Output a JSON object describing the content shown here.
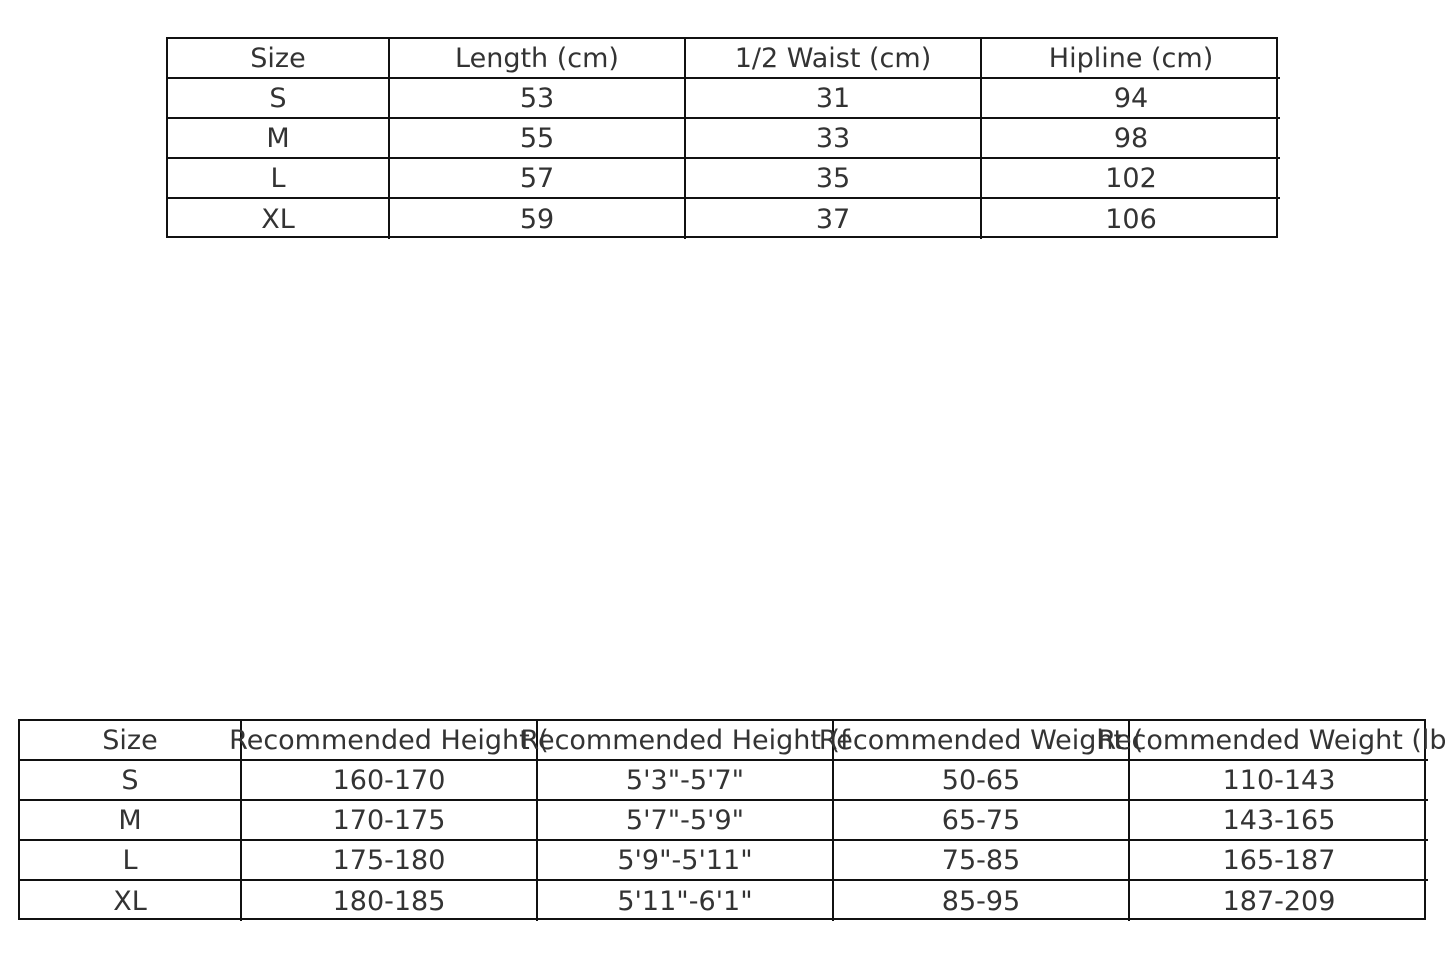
{
  "table1": {
    "header": [
      "Size",
      "Length (cm)",
      "1/2 Waist (cm)",
      "Hipline (cm)"
    ],
    "rows": [
      [
        "S",
        "53",
        "31",
        "94"
      ],
      [
        "M",
        "55",
        "33",
        "98"
      ],
      [
        "L",
        "57",
        "35",
        "102"
      ],
      [
        "XL",
        "59",
        "37",
        "106"
      ]
    ]
  },
  "table2": {
    "header": [
      "Size",
      "Recommended Height (",
      "Recommended Height (f",
      "Recommended Weight (",
      "Recommended Weight (lbs"
    ],
    "rows": [
      [
        "S",
        "160-170",
        "5'3\"-5'7\"",
        "50-65",
        "110-143"
      ],
      [
        "M",
        "170-175",
        "5'7\"-5'9\"",
        "65-75",
        "143-165"
      ],
      [
        "L",
        "175-180",
        "5'9\"-5'11\"",
        "75-85",
        "165-187"
      ],
      [
        "XL",
        "180-185",
        "5'11\"-6'1\"",
        "85-95",
        "187-209"
      ]
    ]
  }
}
